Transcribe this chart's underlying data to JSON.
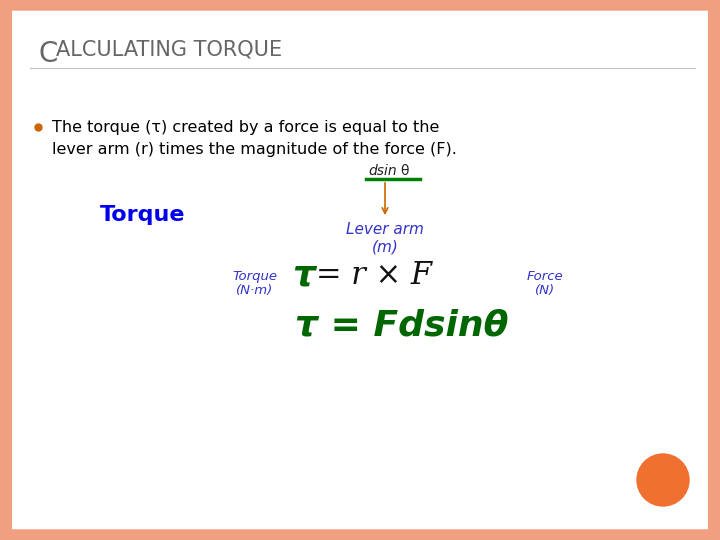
{
  "title_C": "C",
  "title_rest": "ALCULATING TORQUE",
  "title_color": "#666666",
  "background_color": "#ffffff",
  "border_color": "#f0a080",
  "bullet_color": "#cc6600",
  "line1": "The torque (τ) created by a force is equal to the",
  "line2": "lever arm (r) times the magnitude of the force (F).",
  "text_color": "#000000",
  "torque_label": "Torque",
  "torque_label_color": "#0000ee",
  "dsin_color": "#222222",
  "dsin_underline_color": "#008000",
  "arrow_color": "#cc6600",
  "lever_arm_color": "#3333cc",
  "torque_unit_color": "#3333cc",
  "force_unit_color": "#3333cc",
  "eq_tau_color": "#006600",
  "eq_main_color": "#111111",
  "eq2_color": "#006600",
  "orange_dot_color": "#f07030",
  "figsize": [
    7.2,
    5.4
  ],
  "dpi": 100
}
